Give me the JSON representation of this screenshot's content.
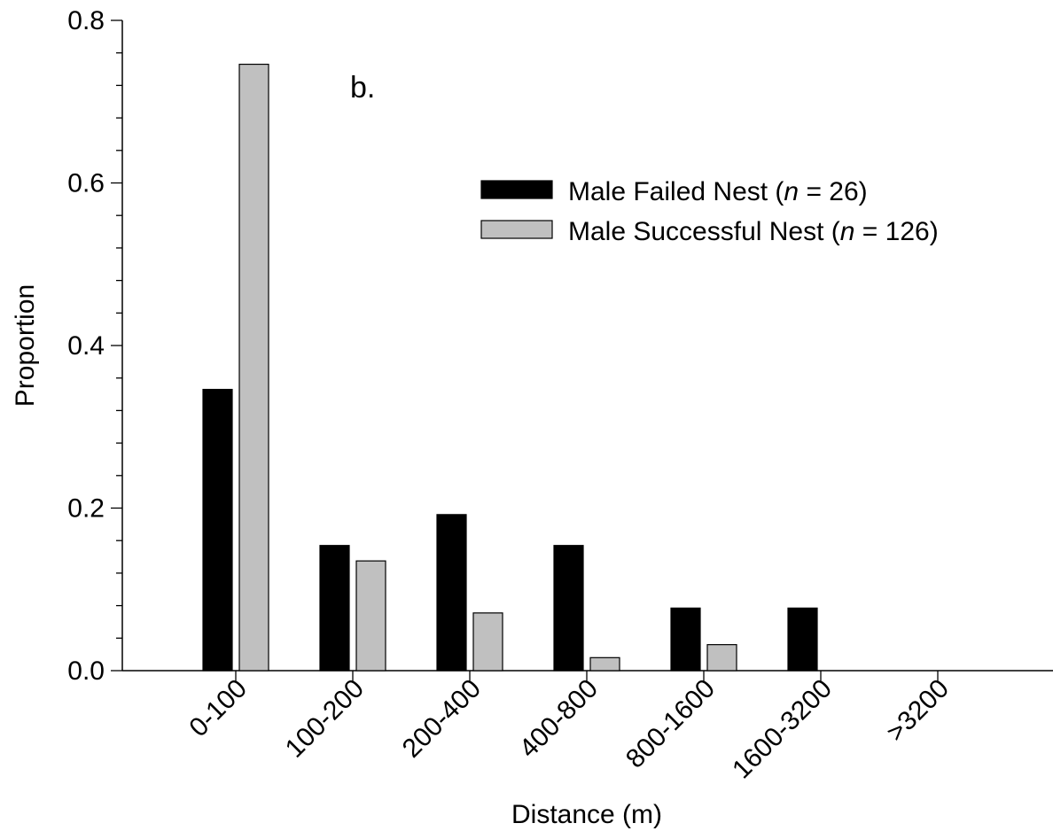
{
  "chart_data": {
    "type": "bar",
    "panel_label": "b.",
    "xlabel": "Distance (m)",
    "ylabel": "Proportion",
    "ylim": [
      0,
      0.8
    ],
    "yticks": [
      "0.0",
      "0.2",
      "0.4",
      "0.6",
      "0.8"
    ],
    "categories": [
      "0-100",
      "100-200",
      "200-400",
      "400-800",
      "800-1600",
      "1600-3200",
      ">3200"
    ],
    "series": [
      {
        "legend_prefix": "Male Failed Nest (",
        "legend_n": "n",
        "legend_suffix": " = 26)",
        "color": "#000000",
        "values": [
          0.346,
          0.154,
          0.192,
          0.154,
          0.077,
          0.077,
          0.0
        ]
      },
      {
        "legend_prefix": "Male Successful Nest (",
        "legend_n": "n",
        "legend_suffix": " = 126)",
        "color": "#c0c0c0",
        "values": [
          0.746,
          0.135,
          0.071,
          0.016,
          0.032,
          0.0,
          0.0
        ]
      }
    ],
    "legend_position": "top-right",
    "grid": false
  }
}
